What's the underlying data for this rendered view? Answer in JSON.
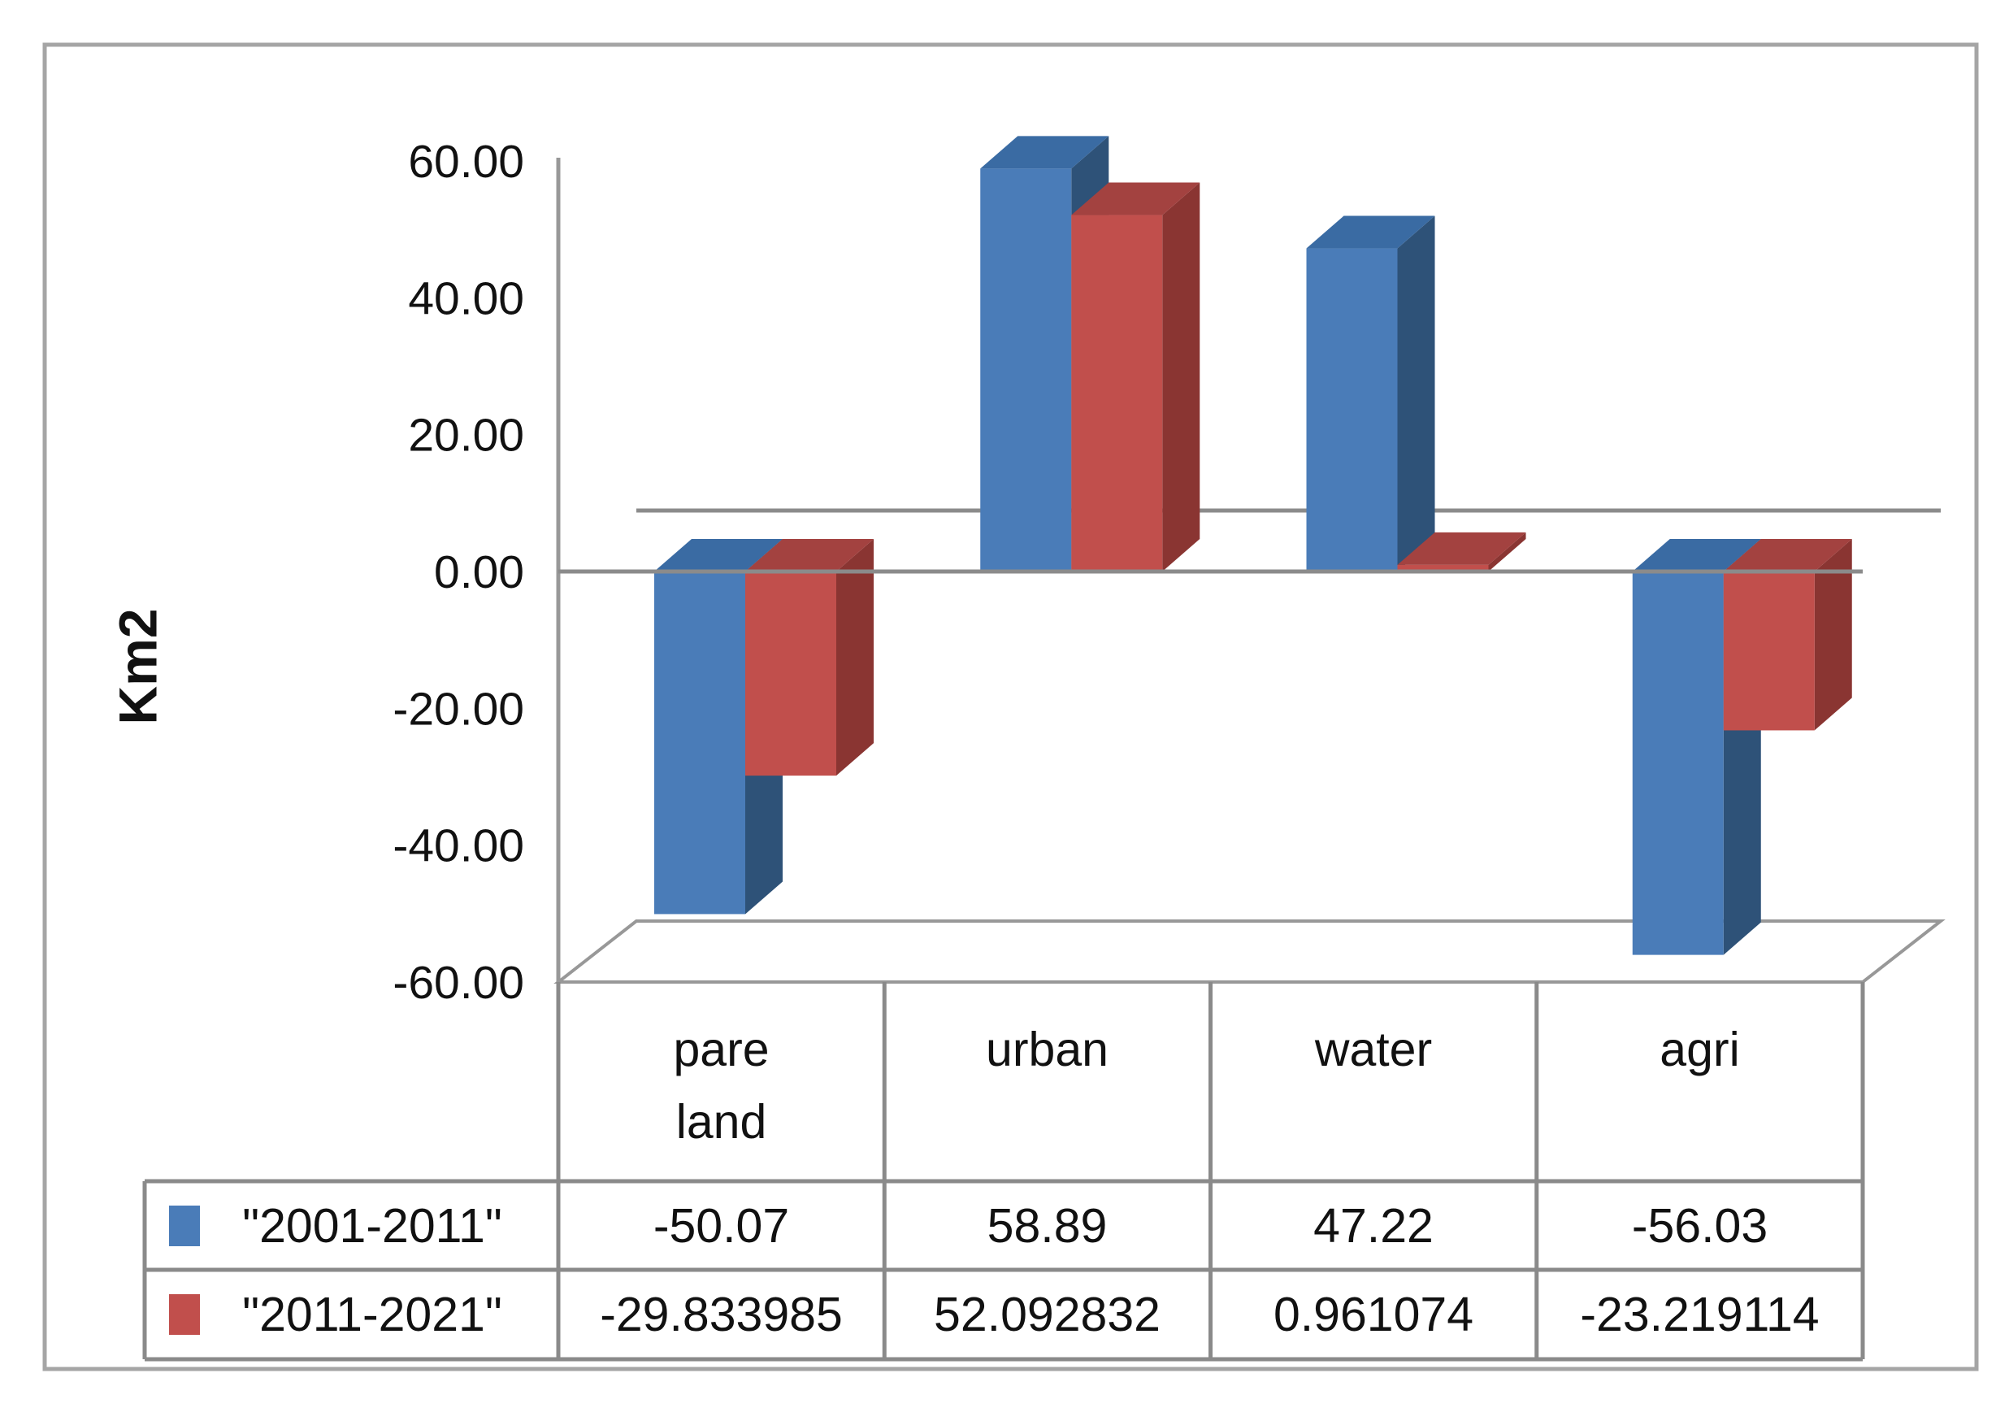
{
  "chart_data": {
    "type": "bar",
    "projection": "3d-clustered-column",
    "title": "",
    "ylabel": "Km2",
    "xlabel": "",
    "categories": [
      "pare land",
      "urban",
      "water",
      "agri"
    ],
    "series": [
      {
        "name": "\"2001-2011\"",
        "values": [
          -50.07,
          58.89,
          47.22,
          -56.03
        ],
        "color": "#4A7CB8",
        "color_side": "#2E5278",
        "color_top": "#3A6BA3"
      },
      {
        "name": "\"2011-2021\"",
        "values": [
          -29.833985,
          52.092832,
          0.961074,
          -23.219114
        ],
        "color": "#C14F4C",
        "color_side": "#8A3532",
        "color_top": "#A34240"
      }
    ],
    "yticks": [
      "60.00",
      "40.00",
      "20.00",
      "0.00",
      "-20.00",
      "-40.00",
      "-60.00"
    ],
    "ylim": [
      -60,
      60
    ],
    "grid": "zero-lines-only",
    "legend_position": "table-left-swatches",
    "data_table_shown": true
  },
  "colors": {
    "axis": "#989898",
    "gridline": "#8B8B8B",
    "table_border": "#8A8A8A",
    "frame_border": "#A5A5A5",
    "floor_fill": "#FFFFFF",
    "text": "#111111",
    "background": "#FFFFFF"
  }
}
